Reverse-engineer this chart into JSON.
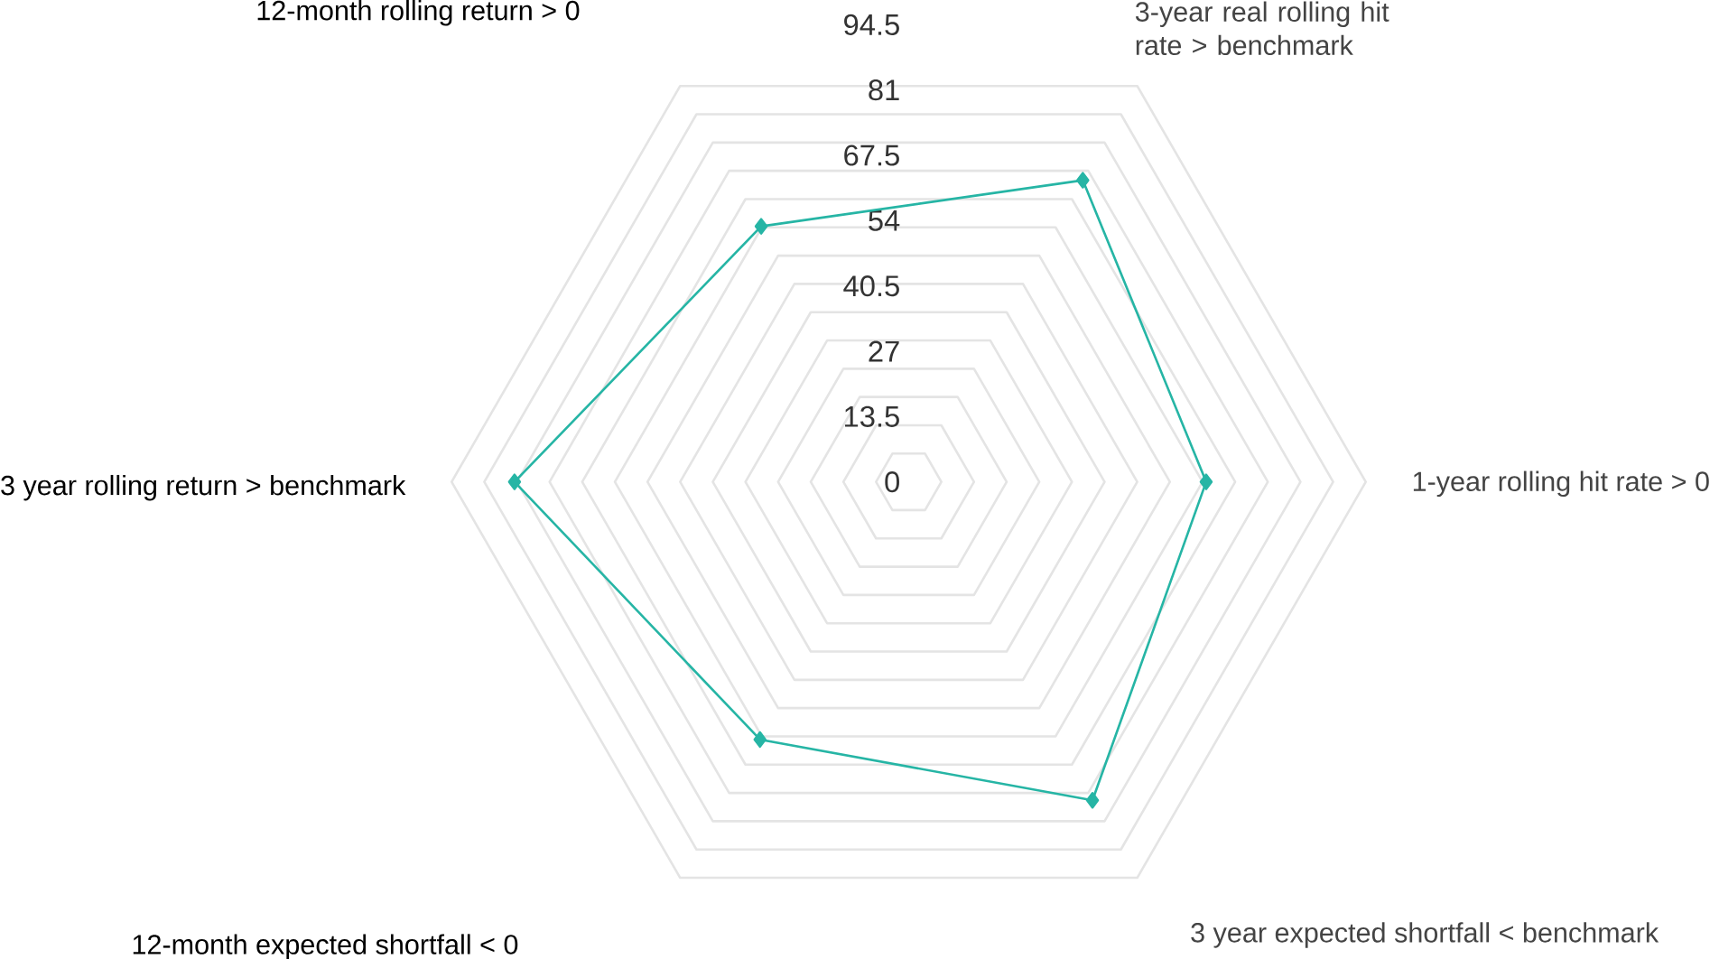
{
  "chart_data": {
    "type": "radar",
    "categories": [
      "3-year real rolling hit rate > benchmark",
      "1-year rolling hit rate > 0",
      "3 year expected shortfall < benchmark",
      "12-month expected shortfall < 0",
      "3 year rolling return > benchmark",
      "12-month rolling return > 0"
    ],
    "series": [
      {
        "color": "#26b5a5",
        "values": [
          72,
          61.5,
          76,
          61.5,
          81.5,
          61
        ]
      }
    ],
    "ylim": [
      0,
      94.5
    ],
    "yticks": [
      0,
      13.5,
      27,
      40.5,
      54,
      67.5,
      81,
      94.5
    ],
    "marker": "diamond",
    "grid": true
  }
}
